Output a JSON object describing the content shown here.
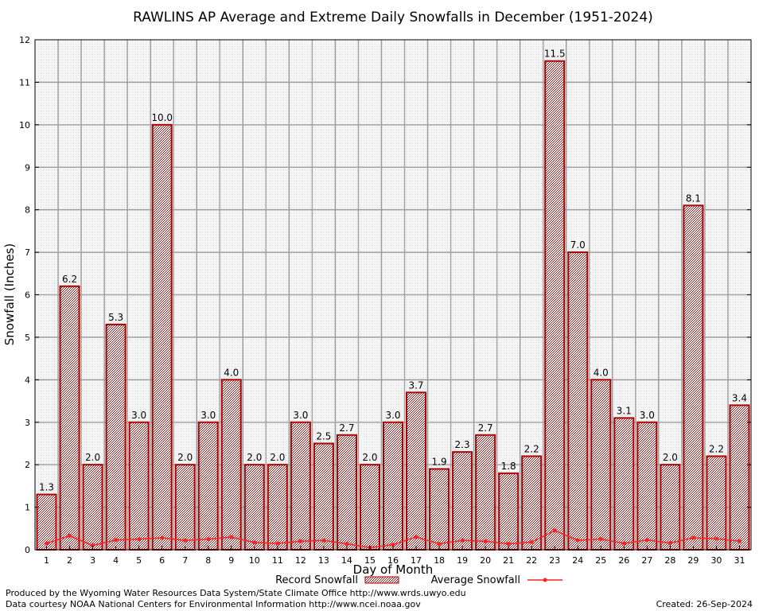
{
  "chart_data": {
    "type": "bar",
    "title": "RAWLINS AP Average and Extreme Daily Snowfalls in December (1951-2024)",
    "xlabel": "Day of Month",
    "ylabel": "Snowfall (Inches)",
    "ylim": [
      0,
      12
    ],
    "yticks": [
      0,
      1,
      2,
      3,
      4,
      5,
      6,
      7,
      8,
      9,
      10,
      11,
      12
    ],
    "grid": true,
    "legend_position": "bottom-center",
    "categories": [
      "1",
      "2",
      "3",
      "4",
      "5",
      "6",
      "7",
      "8",
      "9",
      "10",
      "11",
      "12",
      "13",
      "14",
      "15",
      "16",
      "17",
      "18",
      "19",
      "20",
      "21",
      "22",
      "23",
      "24",
      "25",
      "26",
      "27",
      "28",
      "29",
      "30",
      "31"
    ],
    "series": [
      {
        "name": "Record Snowfall",
        "kind": "bar",
        "color": "#aa0000",
        "values": [
          1.3,
          6.2,
          2.0,
          5.3,
          3.0,
          10.0,
          2.0,
          3.0,
          4.0,
          2.0,
          2.0,
          3.0,
          2.5,
          2.7,
          2.0,
          3.0,
          3.7,
          1.9,
          2.3,
          2.7,
          1.8,
          2.2,
          11.5,
          7.0,
          4.0,
          3.1,
          3.0,
          2.0,
          8.1,
          2.2,
          3.4
        ],
        "labels": [
          "1.3",
          "6.2",
          "2.0",
          "5.3",
          "3.0",
          "10.0",
          "2.0",
          "3.0",
          "4.0",
          "2.0",
          "2.0",
          "3.0",
          "2.5",
          "2.7",
          "2.0",
          "3.0",
          "3.7",
          "1.9",
          "2.3",
          "2.7",
          "1.8",
          "2.2",
          "11.5",
          "7.0",
          "4.0",
          "3.1",
          "3.0",
          "2.0",
          "8.1",
          "2.2",
          "3.4"
        ]
      },
      {
        "name": "Average Snowfall",
        "kind": "line",
        "color": "#ff2020",
        "values": [
          0.15,
          0.33,
          0.1,
          0.23,
          0.25,
          0.28,
          0.22,
          0.25,
          0.3,
          0.17,
          0.15,
          0.2,
          0.22,
          0.14,
          0.05,
          0.12,
          0.3,
          0.14,
          0.22,
          0.2,
          0.14,
          0.18,
          0.45,
          0.22,
          0.25,
          0.15,
          0.23,
          0.16,
          0.28,
          0.26,
          0.2
        ]
      }
    ]
  },
  "footer": {
    "produced_by": "Produced by the Wyoming Water Resources Data System/State Climate Office http://www.wrds.uwyo.edu",
    "courtesy": "Data courtesy NOAA National Centers for Environmental Information http://www.ncei.noaa.gov",
    "created": "Created:  26-Sep-2024"
  }
}
